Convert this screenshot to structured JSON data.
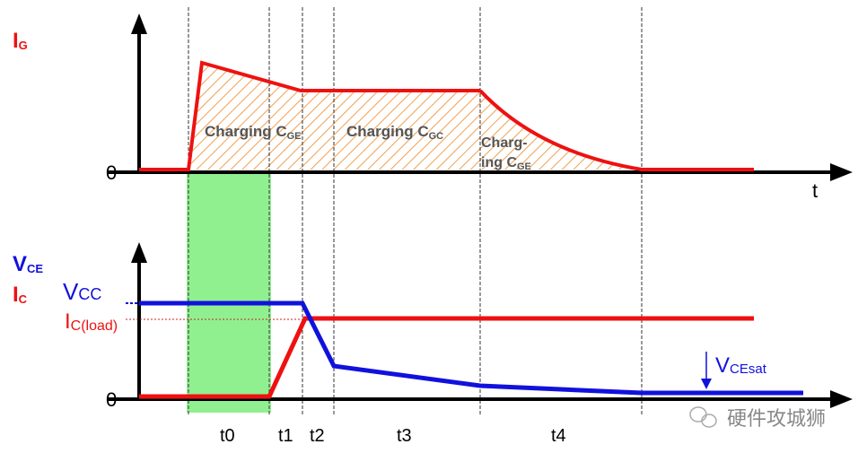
{
  "colors": {
    "gate_current": "#ee1111",
    "collector_current": "#ee1111",
    "vce": "#1111dd",
    "plateau_fill": "#f0a050",
    "phase_t0": "#90f090",
    "axis": "#000000"
  },
  "top": {
    "ylabel_main": "I",
    "ylabel_sub": "G",
    "zero": "0",
    "xlabel": "t",
    "regions": [
      {
        "main": "Charging C",
        "sub": "GE"
      },
      {
        "main": "Charging C",
        "sub": "GC"
      },
      {
        "line1": "Charg-",
        "main": "ing C",
        "sub": "GE"
      }
    ]
  },
  "bottom": {
    "ylabel_vce_main": "V",
    "ylabel_vce_sub": "CE",
    "ylabel_ic_main": "I",
    "ylabel_ic_sub": "C",
    "vcc_main": "V",
    "vcc_sub": "CC",
    "icload_main": "I",
    "icload_sub": "C(load)",
    "zero": "0",
    "vcesat_main": "V",
    "vcesat_sub": "CEsat"
  },
  "phases": [
    "t0",
    "t1",
    "t2",
    "t3",
    "t4"
  ],
  "watermark": "硬件攻城狮"
}
